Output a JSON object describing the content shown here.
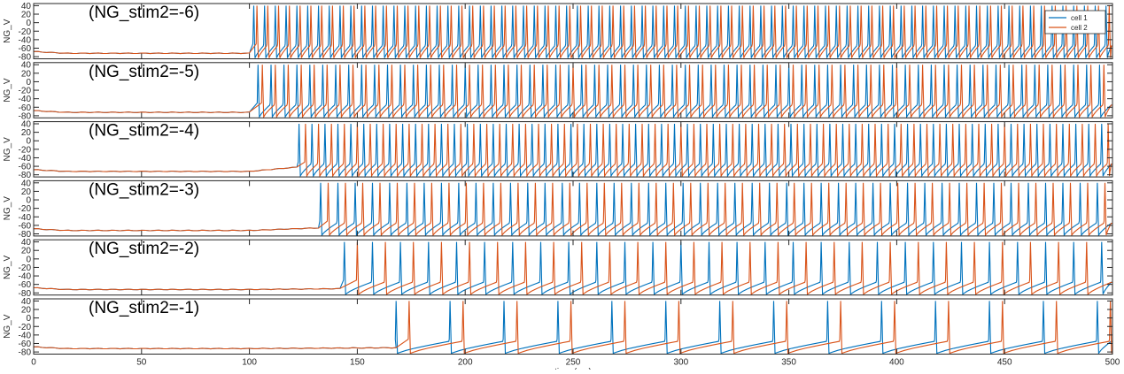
{
  "chart_data": {
    "type": "line",
    "xlabel": "time (ms)",
    "ylabel": "NG_V",
    "xlim": [
      0,
      500
    ],
    "ylim": [
      -85,
      45
    ],
    "x_ticks": [
      0,
      50,
      100,
      150,
      200,
      250,
      300,
      350,
      400,
      450,
      500
    ],
    "y_ticks": [
      -80,
      -60,
      -40,
      -20,
      0,
      20,
      40
    ],
    "legend": {
      "position": "top-right",
      "entries": [
        "cell 1",
        "cell 2"
      ]
    },
    "series_colors": {
      "cell 1": "#0072BD",
      "cell 2": "#D95319"
    },
    "stimulus_onset_ms": 100,
    "rest_potential_mV": -72,
    "spike_peak_mV": 40,
    "spike_trough_mV": -83,
    "panels": [
      {
        "label": "(NG_stim2=-6)",
        "onset_ms": 101,
        "pre_onset_mV": -70,
        "series": [
          {
            "name": "cell 1",
            "spike_times": [
              102,
              107,
              112,
              117,
              122,
              127,
              132,
              137,
              142,
              147,
              152,
              157,
              162,
              167,
              172,
              177,
              182,
              187,
              192,
              197,
              202,
              207,
              212,
              217,
              222,
              227,
              232,
              237,
              242,
              247,
              252,
              257,
              262,
              267,
              272,
              277,
              282,
              287,
              292,
              297,
              302,
              307,
              312,
              317,
              322,
              327,
              332,
              337,
              342,
              347,
              352,
              357,
              362,
              367,
              372,
              377,
              382,
              387,
              392,
              397,
              402,
              407,
              412,
              417,
              422,
              427,
              432,
              437,
              442,
              447,
              452,
              457,
              462,
              467,
              472,
              477,
              482,
              487,
              492,
              497
            ]
          },
          {
            "name": "cell 2",
            "spike_times": [
              103.5,
              108.5,
              113.5,
              118.5,
              123.5,
              128.5,
              133.5,
              138.5,
              143.5,
              148.5,
              153.5,
              158.5,
              163.5,
              168.5,
              173.5,
              178.5,
              183.5,
              188.5,
              193.5,
              198.5,
              203.5,
              208.5,
              213.5,
              218.5,
              223.5,
              228.5,
              233.5,
              238.5,
              243.5,
              248.5,
              253.5,
              258.5,
              263.5,
              268.5,
              273.5,
              278.5,
              283.5,
              288.5,
              293.5,
              298.5,
              303.5,
              308.5,
              313.5,
              318.5,
              323.5,
              328.5,
              333.5,
              338.5,
              343.5,
              348.5,
              353.5,
              358.5,
              363.5,
              368.5,
              373.5,
              378.5,
              383.5,
              388.5,
              393.5,
              398.5,
              403.5,
              408.5,
              413.5,
              418.5,
              423.5,
              428.5,
              433.5,
              438.5,
              443.5,
              448.5,
              453.5,
              458.5,
              463.5,
              468.5,
              473.5,
              478.5,
              483.5,
              488.5,
              493.5,
              498.5
            ]
          }
        ]
      },
      {
        "label": "(NG_stim2=-5)",
        "onset_ms": 101,
        "pre_onset_mV": -70,
        "series": [
          {
            "name": "cell 1",
            "spike_times": [
              104,
              110,
              116,
              122,
              128,
              134,
              140,
              146,
              152,
              158,
              164,
              170,
              176,
              182,
              188,
              194,
              200,
              206,
              212,
              218,
              224,
              230,
              236,
              242,
              248,
              254,
              260,
              266,
              272,
              278,
              284,
              290,
              296,
              302,
              308,
              314,
              320,
              326,
              332,
              338,
              344,
              350,
              356,
              362,
              368,
              374,
              380,
              386,
              392,
              398,
              404,
              410,
              416,
              422,
              428,
              434,
              440,
              446,
              452,
              458,
              464,
              470,
              476,
              482,
              488,
              494
            ]
          },
          {
            "name": "cell 2",
            "spike_times": [
              106,
              112,
              118,
              124,
              130,
              136,
              142,
              148,
              154,
              160,
              166,
              172,
              178,
              184,
              190,
              196,
              202,
              208,
              214,
              220,
              226,
              232,
              238,
              244,
              250,
              256,
              262,
              268,
              274,
              280,
              286,
              292,
              298,
              304,
              310,
              316,
              322,
              328,
              334,
              340,
              346,
              352,
              358,
              364,
              370,
              376,
              382,
              388,
              394,
              400,
              406,
              412,
              418,
              424,
              430,
              436,
              442,
              448,
              454,
              460,
              466,
              472,
              478,
              484,
              490,
              496
            ]
          }
        ]
      },
      {
        "label": "(NG_stim2=-4)",
        "onset_ms": 122,
        "pre_onset_mV": -62,
        "series": [
          {
            "name": "cell 1",
            "spike_times": [
              123,
              129,
              135,
              141,
              147,
              153,
              159,
              165,
              171,
              177,
              183,
              189,
              195,
              201,
              207,
              213,
              219,
              225,
              231,
              237,
              243,
              249,
              255,
              261,
              267,
              273,
              279,
              285,
              291,
              297,
              303,
              309,
              315,
              321,
              327,
              333,
              339,
              345,
              351,
              357,
              363,
              369,
              375,
              381,
              387,
              393,
              399,
              405,
              411,
              417,
              423,
              429,
              435,
              441,
              447,
              453,
              459,
              465,
              471,
              477,
              483,
              489,
              495
            ]
          },
          {
            "name": "cell 2",
            "spike_times": [
              126,
              132,
              138,
              144,
              150,
              156,
              162,
              168,
              174,
              180,
              186,
              192,
              198,
              204,
              210,
              216,
              222,
              228,
              234,
              240,
              246,
              252,
              258,
              264,
              270,
              276,
              282,
              288,
              294,
              300,
              306,
              312,
              318,
              324,
              330,
              336,
              342,
              348,
              354,
              360,
              366,
              372,
              378,
              384,
              390,
              396,
              402,
              408,
              414,
              420,
              426,
              432,
              438,
              444,
              450,
              456,
              462,
              468,
              474,
              480,
              486,
              492,
              498
            ]
          }
        ]
      },
      {
        "label": "(NG_stim2=-3)",
        "onset_ms": 132,
        "pre_onset_mV": -66,
        "series": [
          {
            "name": "cell 1",
            "spike_times": [
              133,
              141,
              149,
              157,
              165,
              173,
              181,
              189,
              197,
              205,
              213,
              221,
              229,
              237,
              245,
              253,
              261,
              269,
              277,
              285,
              293,
              301,
              309,
              317,
              325,
              333,
              341,
              349,
              357,
              365,
              373,
              381,
              389,
              397,
              405,
              413,
              421,
              429,
              437,
              445,
              453,
              461,
              469,
              477,
              485,
              493
            ]
          },
          {
            "name": "cell 2",
            "spike_times": [
              136.5,
              144.5,
              152.5,
              160.5,
              168.5,
              176.5,
              184.5,
              192.5,
              200.5,
              208.5,
              216.5,
              224.5,
              232.5,
              240.5,
              248.5,
              256.5,
              264.5,
              272.5,
              280.5,
              288.5,
              296.5,
              304.5,
              312.5,
              320.5,
              328.5,
              336.5,
              344.5,
              352.5,
              360.5,
              368.5,
              376.5,
              384.5,
              392.5,
              400.5,
              408.5,
              416.5,
              424.5,
              432.5,
              440.5,
              448.5,
              456.5,
              464.5,
              472.5,
              480.5,
              488.5,
              496.5
            ]
          }
        ]
      },
      {
        "label": "(NG_stim2=-2)",
        "onset_ms": 143,
        "pre_onset_mV": -70,
        "series": [
          {
            "name": "cell 1",
            "spike_times": [
              144,
              157,
              170,
              183,
              196,
              209,
              222,
              235,
              248,
              261,
              274,
              287,
              300,
              313,
              326,
              339,
              352,
              365,
              378,
              391,
              404,
              417,
              430,
              443,
              456,
              469,
              482,
              495
            ]
          },
          {
            "name": "cell 2",
            "spike_times": [
              150,
              163,
              176,
              189,
              202,
              215,
              228,
              241,
              254,
              267,
              280,
              293,
              306,
              319,
              332,
              345,
              358,
              371,
              384,
              397,
              410,
              423,
              436,
              449,
              462,
              475,
              488
            ]
          }
        ]
      },
      {
        "label": "(NG_stim2=-1)",
        "onset_ms": 168,
        "pre_onset_mV": -70,
        "series": [
          {
            "name": "cell 1",
            "spike_times": [
              168,
              193,
              218,
              243,
              268,
              293,
              318,
              343,
              368,
              393,
              418,
              443,
              468,
              493
            ]
          },
          {
            "name": "cell 2",
            "spike_times": [
              174,
              199,
              224,
              249,
              274,
              299,
              324,
              349,
              374,
              399,
              424,
              449,
              474,
              499
            ]
          }
        ]
      }
    ]
  }
}
